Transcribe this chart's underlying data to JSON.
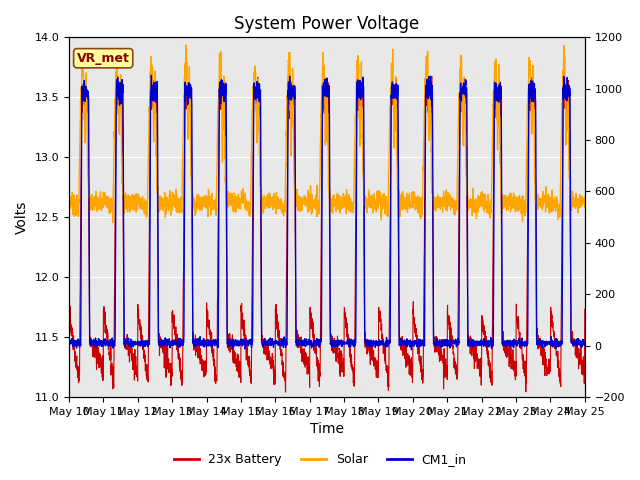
{
  "title": "System Power Voltage",
  "xlabel": "Time",
  "ylabel": "Volts",
  "ylim_left": [
    11.0,
    14.0
  ],
  "ylim_right": [
    -200,
    1200
  ],
  "yticks_left": [
    11.0,
    11.5,
    12.0,
    12.5,
    13.0,
    13.5,
    14.0
  ],
  "yticks_right": [
    -200,
    0,
    200,
    400,
    600,
    800,
    1000,
    1200
  ],
  "background_color": "#e8e8e8",
  "line_colors": {
    "battery": "#cc0000",
    "solar": "#ffa500",
    "cm1": "#0000cc"
  },
  "legend_labels": [
    "23x Battery",
    "Solar",
    "CM1_in"
  ],
  "annotation_text": "VR_met",
  "annotation_bbox_color": "#ffff99",
  "annotation_bbox_edge": "#8B4513",
  "title_fontsize": 12,
  "label_fontsize": 10,
  "tick_fontsize": 8,
  "legend_fontsize": 9
}
